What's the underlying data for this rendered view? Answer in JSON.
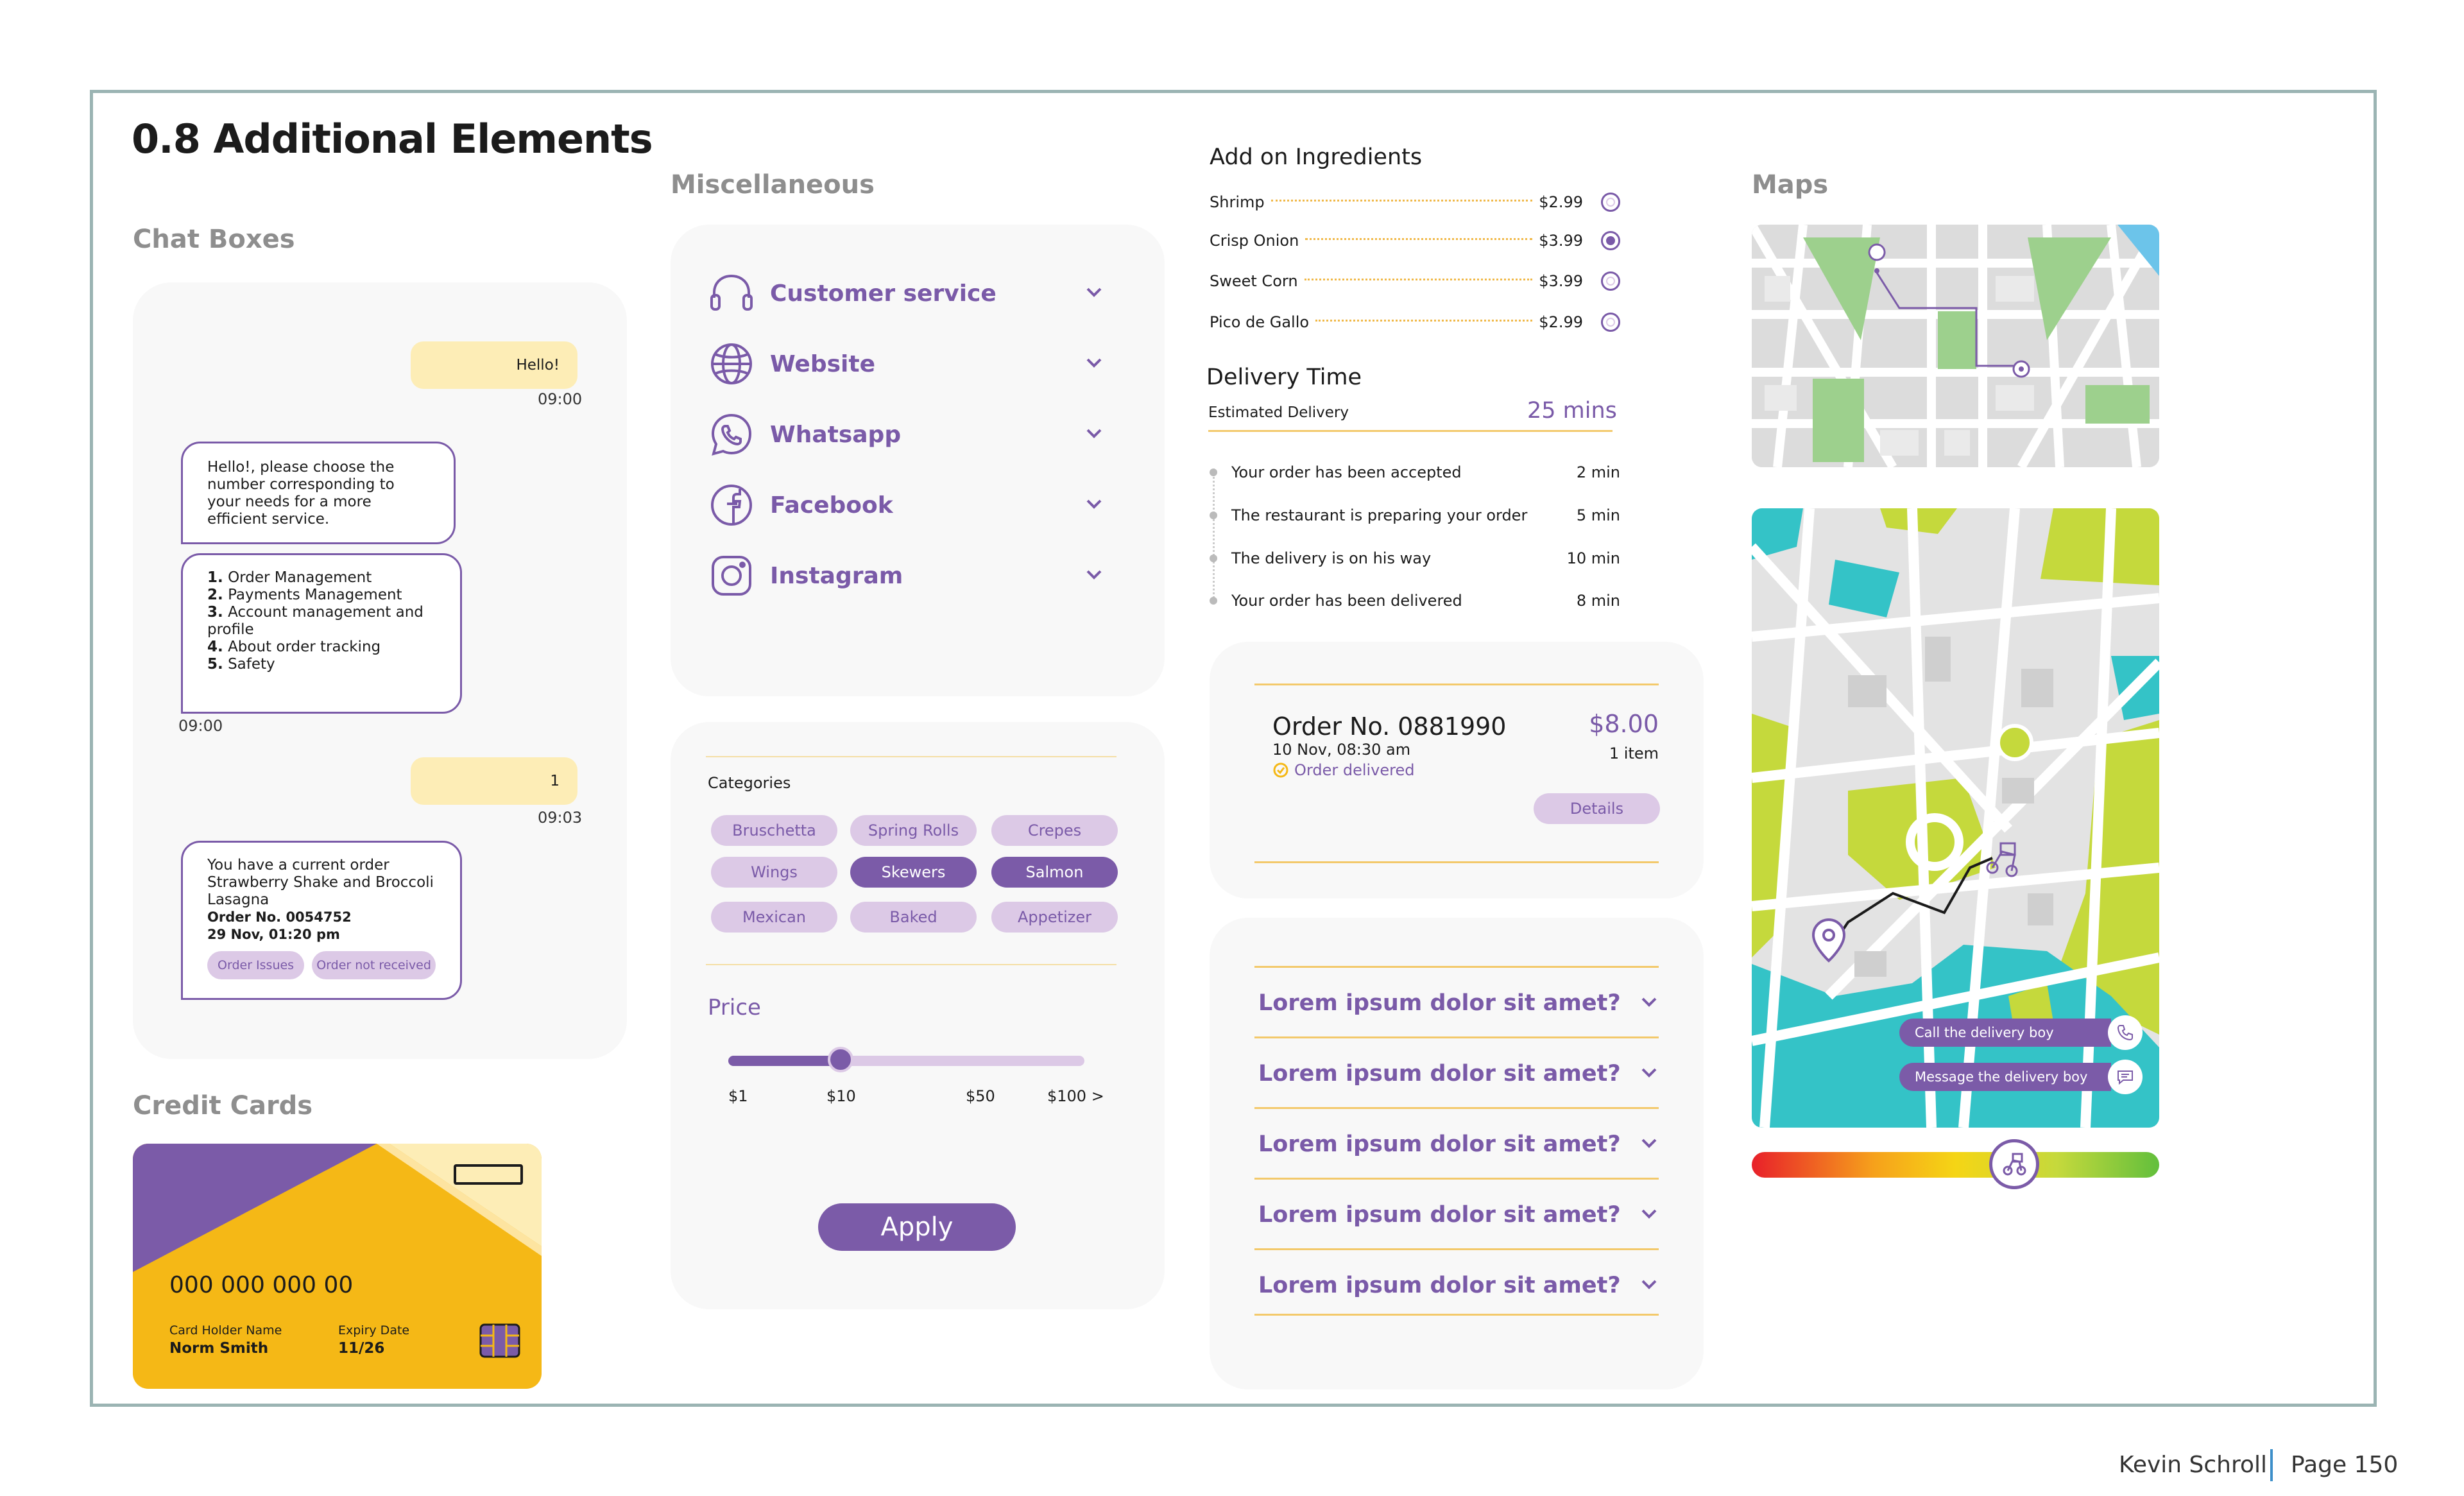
{
  "page_title": "0.8 Additional Elements",
  "sections": {
    "chat": "Chat Boxes",
    "credit": "Credit Cards",
    "misc": "Miscellaneous",
    "maps": "Maps"
  },
  "chat": {
    "msg1": "Hello!",
    "time1": "09:00",
    "msg2": "Hello!, please choose the number corresponding to your needs for a more efficient service.",
    "options": [
      {
        "num": "1.",
        "text": "Order Management"
      },
      {
        "num": "2.",
        "text": "Payments Management"
      },
      {
        "num": "3.",
        "text": "Account management and profile"
      },
      {
        "num": "4.",
        "text": "About order tracking"
      },
      {
        "num": "5.",
        "text": "Safety"
      }
    ],
    "time2": "09:00",
    "msg3": "1",
    "time3": "09:03",
    "msg4": "You have a current order Strawberry Shake and Broccoli Lasagna",
    "order_no": "Order No. 0054752",
    "order_date": "29 Nov, 01:20 pm",
    "chip1": "Order Issues",
    "chip2": "Order not received"
  },
  "card": {
    "number": "000 000 000 00",
    "holder_label": "Card Holder Name",
    "holder": "Norm Smith",
    "expiry_label": "Expiry Date",
    "expiry": "11/26"
  },
  "misc": {
    "items": [
      {
        "label": "Customer service",
        "icon": "headset-icon"
      },
      {
        "label": "Website",
        "icon": "globe-icon"
      },
      {
        "label": "Whatsapp",
        "icon": "whatsapp-icon"
      },
      {
        "label": "Facebook",
        "icon": "facebook-icon"
      },
      {
        "label": "Instagram",
        "icon": "instagram-icon"
      }
    ]
  },
  "filters": {
    "categories_label": "Categories",
    "categories": [
      {
        "label": "Bruschetta",
        "selected": false
      },
      {
        "label": "Spring Rolls",
        "selected": false
      },
      {
        "label": "Crepes",
        "selected": false
      },
      {
        "label": "Wings",
        "selected": false
      },
      {
        "label": "Skewers",
        "selected": true
      },
      {
        "label": "Salmon",
        "selected": true
      },
      {
        "label": "Mexican",
        "selected": false
      },
      {
        "label": "Baked",
        "selected": false
      },
      {
        "label": "Appetizer",
        "selected": false
      }
    ],
    "price_label": "Price",
    "price_ticks": [
      "$1",
      "$10",
      "$50",
      "$100 >"
    ],
    "price_value": "$10",
    "apply": "Apply"
  },
  "ingredients": {
    "title": "Add on Ingredients",
    "items": [
      {
        "name": "Shrimp",
        "price": "$2.99",
        "selected": false
      },
      {
        "name": "Crisp Onion",
        "price": "$3.99",
        "selected": true
      },
      {
        "name": "Sweet Corn",
        "price": "$3.99",
        "selected": false
      },
      {
        "name": "Pico de Gallo",
        "price": "$2.99",
        "selected": false
      }
    ]
  },
  "delivery": {
    "title": "Delivery Time",
    "estimated_label": "Estimated Delivery",
    "estimated": "25 mins",
    "steps": [
      {
        "text": "Your order has been accepted",
        "time": "2 min"
      },
      {
        "text": "The restaurant is preparing your order",
        "time": "5 min"
      },
      {
        "text": "The delivery is on his way",
        "time": "10 min"
      },
      {
        "text": "Your order has been delivered",
        "time": "8 min"
      }
    ]
  },
  "order": {
    "number": "Order No. 0881990",
    "date": "10 Nov, 08:30 am",
    "status": "Order delivered",
    "price": "$8.00",
    "items": "1 item",
    "details": "Details"
  },
  "faq": [
    "Lorem ipsum dolor sit amet?",
    "Lorem ipsum dolor sit amet?",
    "Lorem ipsum dolor sit amet?",
    "Lorem ipsum dolor sit amet?",
    "Lorem ipsum dolor sit amet?"
  ],
  "map_actions": {
    "call": "Call the delivery boy",
    "message": "Message the delivery boy"
  },
  "footer": {
    "author": "Kevin Schroll",
    "page": "Page 150"
  },
  "colors": {
    "purple": "#7a5aa8",
    "light_purple": "#dcc9e6",
    "yellow": "#f5b816",
    "pale_yellow": "#fdedb6",
    "gold_line": "#f3c96b",
    "map_green": "#c5d93c",
    "map_teal": "#34c3c7"
  }
}
